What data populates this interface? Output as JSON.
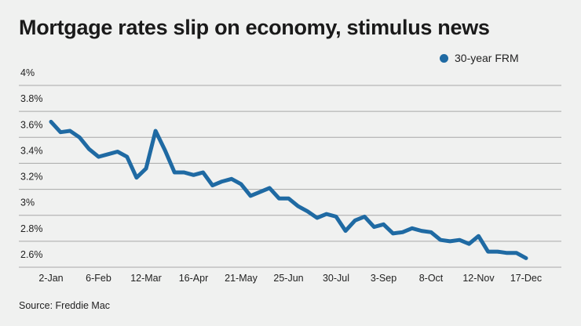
{
  "chart_data": {
    "type": "line",
    "title": "Mortgage rates slip on economy, stimulus news",
    "source": "Source: Freddie Mac",
    "legend_position": "top-right",
    "grid": true,
    "ylim": [
      2.6,
      4.0
    ],
    "y_ticks": [
      4.0,
      3.8,
      3.6,
      3.4,
      3.2,
      3.0,
      2.8,
      2.6
    ],
    "y_tick_labels": [
      "4%",
      "3.8%",
      "3.6%",
      "3.4%",
      "3.2%",
      "3%",
      "2.8%",
      "2.6%"
    ],
    "x_tick_labels": [
      "2-Jan",
      "6-Feb",
      "12-Mar",
      "16-Apr",
      "21-May",
      "25-Jun",
      "30-Jul",
      "3-Sep",
      "8-Oct",
      "12-Nov",
      "17-Dec"
    ],
    "x_tick_every": 5,
    "series": [
      {
        "name": "30-year FRM",
        "color": "#1f6aa3",
        "values": [
          3.72,
          3.64,
          3.65,
          3.6,
          3.51,
          3.45,
          3.47,
          3.49,
          3.45,
          3.29,
          3.36,
          3.65,
          3.5,
          3.33,
          3.33,
          3.31,
          3.33,
          3.23,
          3.26,
          3.28,
          3.24,
          3.15,
          3.18,
          3.21,
          3.13,
          3.13,
          3.07,
          3.03,
          2.98,
          3.01,
          2.99,
          2.88,
          2.96,
          2.99,
          2.91,
          2.93,
          2.86,
          2.87,
          2.9,
          2.88,
          2.87,
          2.81,
          2.8,
          2.81,
          2.78,
          2.84,
          2.72,
          2.72,
          2.71,
          2.71,
          2.67
        ]
      }
    ]
  }
}
